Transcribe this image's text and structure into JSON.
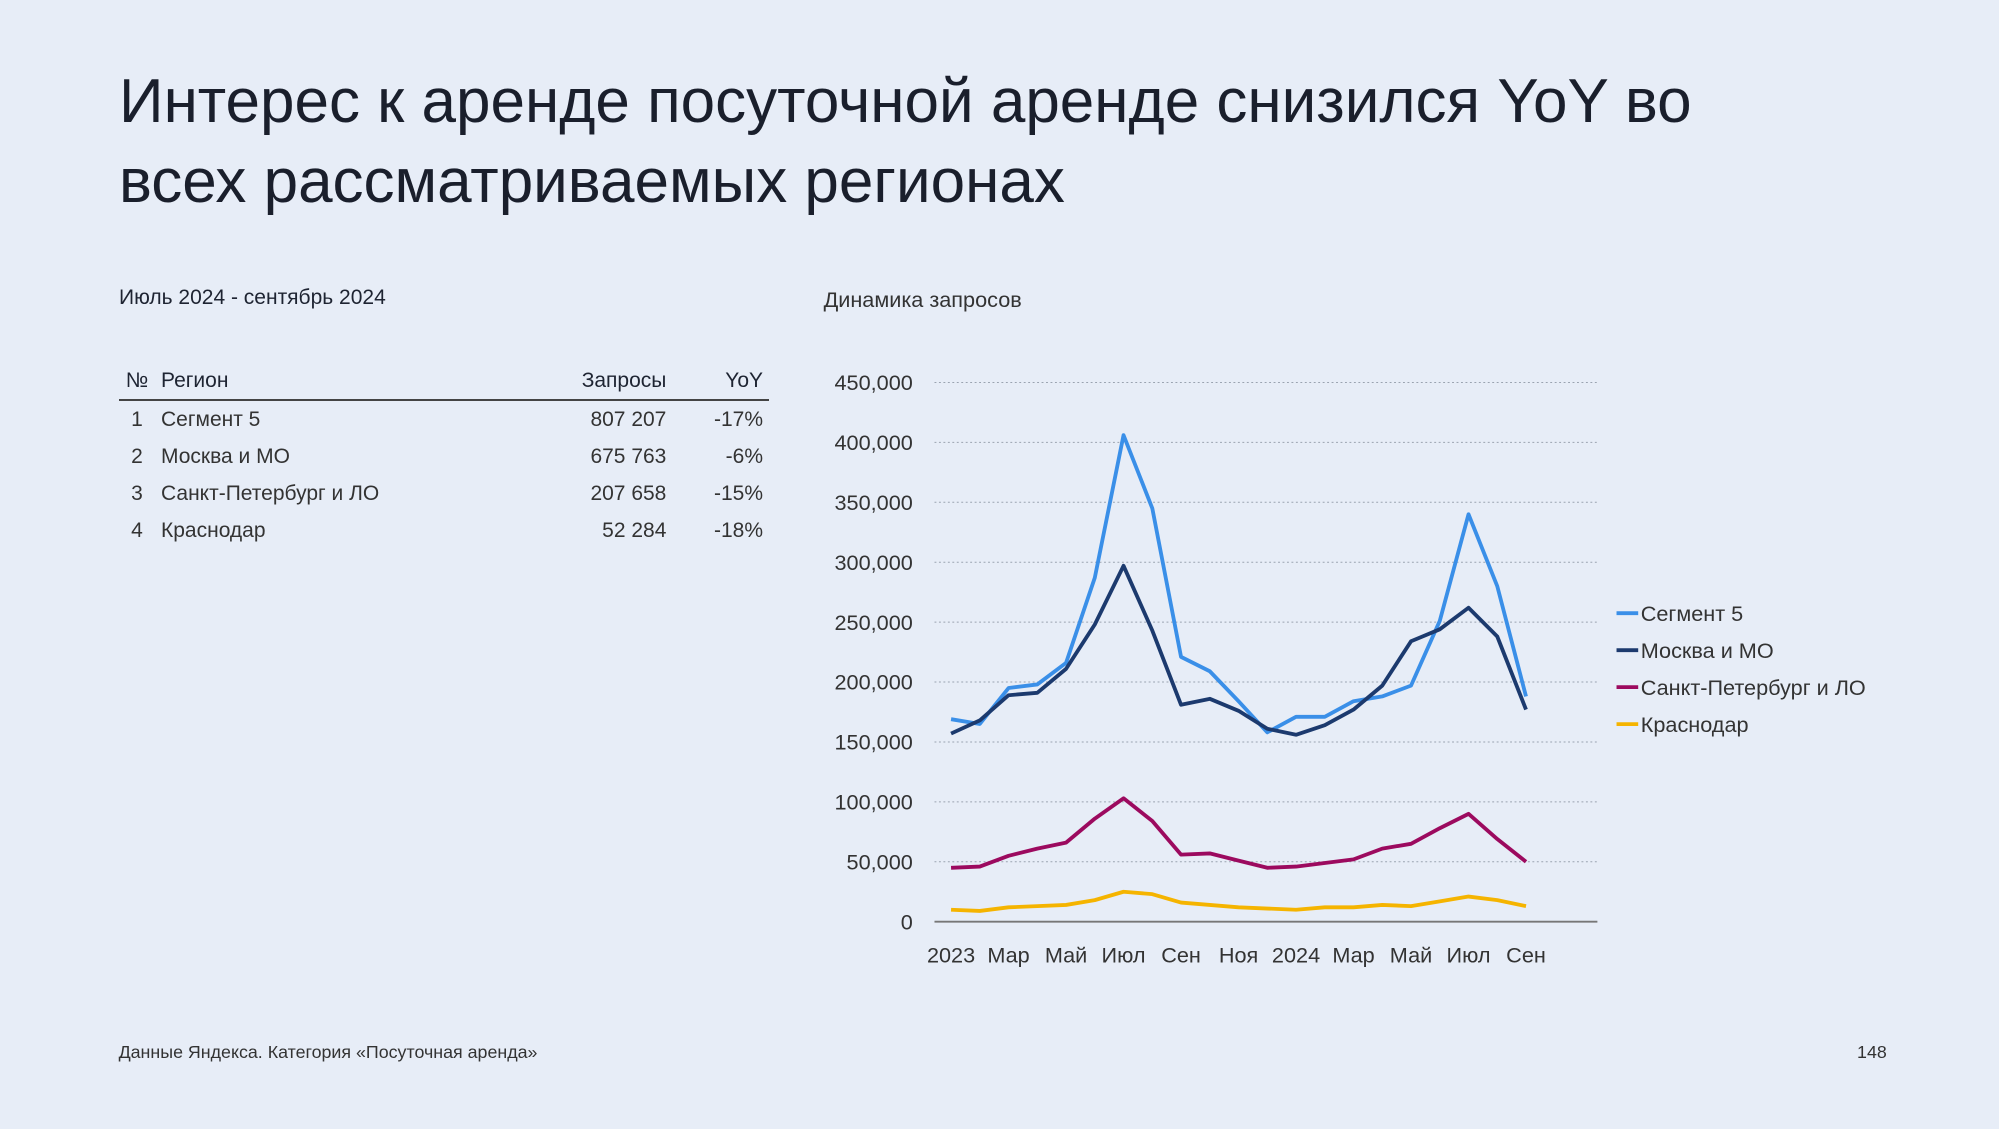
{
  "title": [
    "Интерес к аренде посуточной аренде снизился YoY во",
    "всех рассматриваемых регионах"
  ],
  "table": {
    "subtitle": "Июль 2024 - сентябрь 2024",
    "header": [
      "№",
      "Регион",
      "Запросы",
      "YoY"
    ],
    "rows": [
      [
        "1",
        "Сегмент 5",
        "807 207",
        "-17%"
      ],
      [
        "2",
        "Москва и МО",
        "675 763",
        "-6%"
      ],
      [
        "3",
        "Санкт-Петербург и ЛО",
        "207 658",
        "-15%"
      ],
      [
        "4",
        "Краснодар",
        "52 284",
        "-18%"
      ]
    ]
  },
  "chart_data": {
    "type": "line",
    "title": "Динамика запросов",
    "categories": [
      "2023",
      null,
      "Мар",
      null,
      "Май",
      null,
      "Июл",
      null,
      "Сен",
      null,
      "Ноя",
      null,
      "2024",
      null,
      "Мар",
      null,
      "Май",
      null,
      "Июл",
      null,
      "Сен"
    ],
    "series": [
      {
        "name": "Сегмент 5",
        "color": "#3a8fe8",
        "values": [
          169000,
          165000,
          195000,
          198000,
          216000,
          287000,
          406000,
          345000,
          221000,
          209000,
          184000,
          158000,
          171000,
          171000,
          184000,
          188000,
          197000,
          251000,
          340000,
          280000,
          188000
        ]
      },
      {
        "name": "Москва и МО",
        "color": "#1c3a6e",
        "values": [
          157000,
          168000,
          189000,
          191000,
          211000,
          248000,
          297000,
          243000,
          181000,
          186000,
          176000,
          161000,
          156000,
          164000,
          177000,
          197000,
          234000,
          244000,
          262000,
          238000,
          177000
        ]
      },
      {
        "name": "Санкт-Петербург и ЛО",
        "color": "#9c0a5f",
        "values": [
          45000,
          46000,
          55000,
          61000,
          66000,
          86000,
          103000,
          84000,
          56000,
          57000,
          51000,
          45000,
          46000,
          49000,
          52000,
          61000,
          65000,
          78000,
          90000,
          69000,
          50000
        ]
      },
      {
        "name": "Краснодар",
        "color": "#f5b400",
        "values": [
          10000,
          9000,
          12000,
          13000,
          14000,
          18000,
          25000,
          23000,
          16000,
          14000,
          12000,
          11000,
          10000,
          12000,
          12000,
          14000,
          13000,
          17000,
          21000,
          18000,
          13000
        ]
      }
    ],
    "ylim": [
      0,
      450000
    ],
    "yticks": [
      0,
      {
        "value": 50000,
        "label": "50,000"
      },
      {
        "value": 100000,
        "label": "100,000"
      },
      {
        "value": 150000,
        "label": "150,000"
      },
      {
        "value": 200000,
        "label": "200,000"
      },
      {
        "value": 250000,
        "label": "250,000"
      },
      {
        "value": 300000,
        "label": "300,000"
      },
      {
        "value": 350000,
        "label": "350,000"
      },
      {
        "value": 400000,
        "label": "400,000"
      },
      {
        "value": 450000,
        "label": "450,000"
      }
    ],
    "grid": true,
    "legend": "right"
  },
  "footer": {
    "source": "Данные Яндекса. Категория «Посуточная аренда»",
    "page": "148"
  }
}
